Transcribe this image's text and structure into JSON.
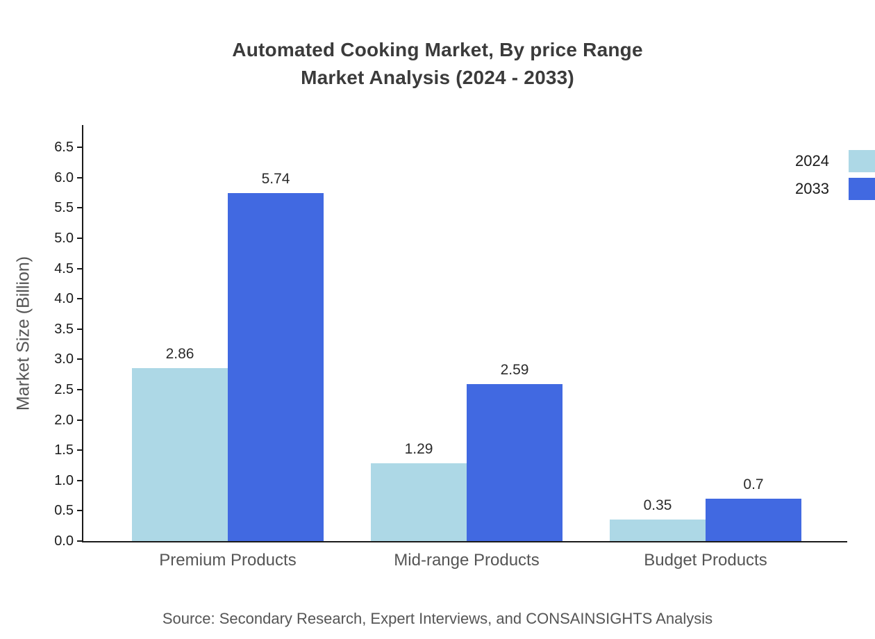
{
  "title": {
    "line1": "Automated Cooking Market, By price Range",
    "line2": "Market Analysis (2024 - 2033)"
  },
  "y_axis_label": "Market Size (Billion)",
  "source": "Source: Secondary Research, Expert Interviews, and CONSAINSIGHTS Analysis",
  "legend": {
    "items": [
      {
        "label": "2024",
        "color": "#ADD8E6"
      },
      {
        "label": "2033",
        "color": "#4169E1"
      }
    ]
  },
  "chart_data": {
    "type": "bar",
    "title": "Automated Cooking Market, By price Range Market Analysis (2024 - 2033)",
    "categories": [
      "Premium Products",
      "Mid-range Products",
      "Budget Products"
    ],
    "series": [
      {
        "name": "2024",
        "color": "#ADD8E6",
        "values": [
          2.86,
          1.29,
          0.35
        ],
        "labels": [
          "2.86",
          "1.29",
          "0.35"
        ]
      },
      {
        "name": "2033",
        "color": "#4169E1",
        "values": [
          5.74,
          2.59,
          0.7
        ],
        "labels": [
          "5.74",
          "2.59",
          "0.7"
        ]
      }
    ],
    "xlabel": "",
    "ylabel": "Market Size (Billion)",
    "ylim": [
      0,
      6.5
    ],
    "ytick_step": 0.5,
    "grid": false,
    "legend_position": "top-right"
  }
}
